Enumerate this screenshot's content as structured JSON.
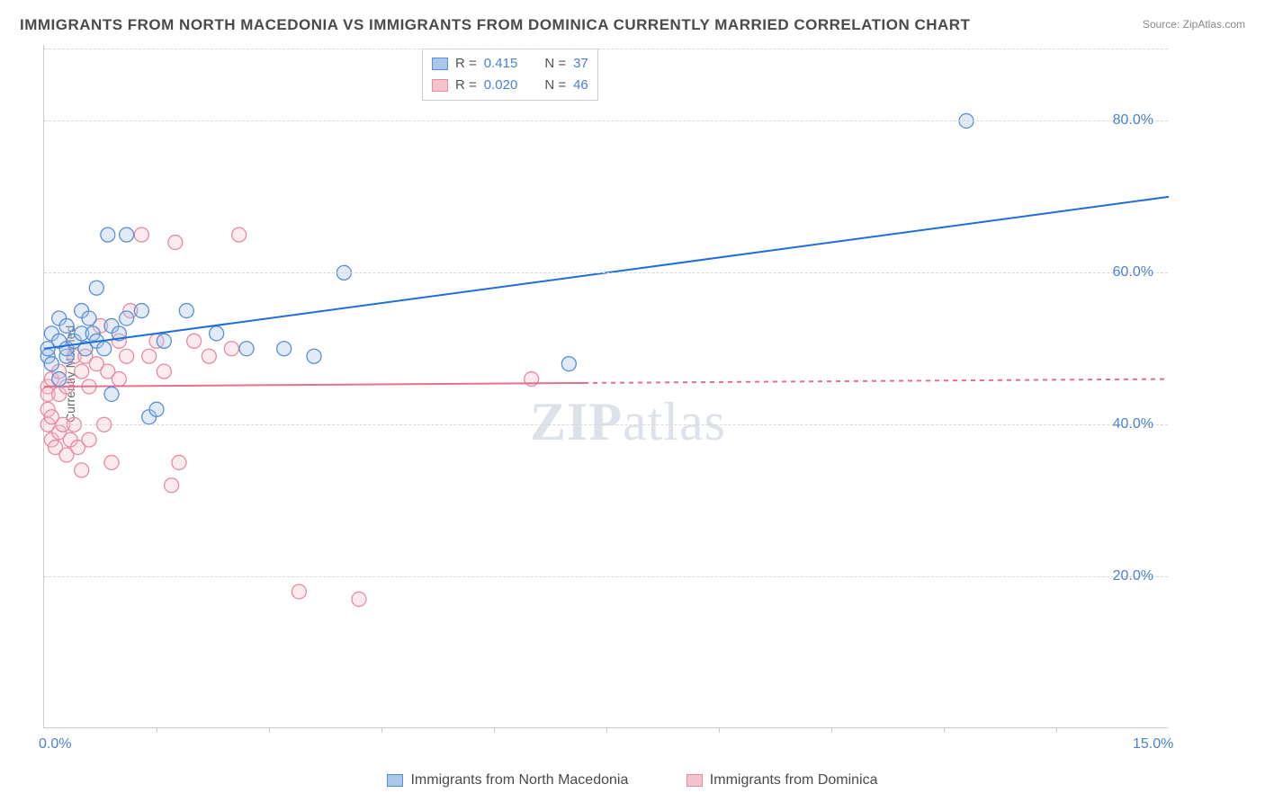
{
  "title": "IMMIGRANTS FROM NORTH MACEDONIA VS IMMIGRANTS FROM DOMINICA CURRENTLY MARRIED CORRELATION CHART",
  "source": "Source: ZipAtlas.com",
  "watermark": "ZIPatlas",
  "ylabel": "Currently Married",
  "chart": {
    "type": "scatter",
    "xlim": [
      0,
      15
    ],
    "ylim": [
      0,
      90
    ],
    "x_ticks": [
      {
        "v": 0,
        "label": "0.0%"
      },
      {
        "v": 15,
        "label": "15.0%"
      }
    ],
    "x_minor_ticks": [
      1.5,
      3,
      4.5,
      6,
      7.5,
      9,
      10.5,
      12,
      13.5
    ],
    "y_ticks": [
      {
        "v": 20,
        "label": "20.0%"
      },
      {
        "v": 40,
        "label": "40.0%"
      },
      {
        "v": 60,
        "label": "60.0%"
      },
      {
        "v": 80,
        "label": "80.0%"
      }
    ],
    "grid_color": "#d8d8d8",
    "background_color": "#ffffff",
    "marker_radius": 8,
    "marker_fill_opacity": 0.35,
    "marker_stroke_width": 1.3,
    "line_width": 2
  },
  "series": {
    "macedonia": {
      "label": "Immigrants from North Macedonia",
      "color_fill": "#a9c6ec",
      "color_stroke": "#5a8fd6",
      "line_color": "#1f6fd6",
      "legend_top": {
        "R": "0.415",
        "N": "37"
      },
      "trend": {
        "x1": 0,
        "y1": 50,
        "x2": 15,
        "y2": 70,
        "solid_until_x": 15
      },
      "points": [
        [
          0.05,
          49
        ],
        [
          0.05,
          50
        ],
        [
          0.1,
          48
        ],
        [
          0.1,
          52
        ],
        [
          0.2,
          46
        ],
        [
          0.2,
          51
        ],
        [
          0.2,
          54
        ],
        [
          0.3,
          49
        ],
        [
          0.3,
          53
        ],
        [
          0.3,
          50
        ],
        [
          0.4,
          51
        ],
        [
          0.5,
          52
        ],
        [
          0.5,
          55
        ],
        [
          0.55,
          50
        ],
        [
          0.6,
          54
        ],
        [
          0.65,
          52
        ],
        [
          0.7,
          51
        ],
        [
          0.7,
          58
        ],
        [
          0.8,
          50
        ],
        [
          0.85,
          65
        ],
        [
          0.9,
          53
        ],
        [
          0.9,
          44
        ],
        [
          1.0,
          52
        ],
        [
          1.1,
          54
        ],
        [
          1.1,
          65
        ],
        [
          1.3,
          55
        ],
        [
          1.4,
          41
        ],
        [
          1.5,
          42
        ],
        [
          1.6,
          51
        ],
        [
          1.9,
          55
        ],
        [
          2.3,
          52
        ],
        [
          2.7,
          50
        ],
        [
          3.2,
          50
        ],
        [
          3.6,
          49
        ],
        [
          4.0,
          60
        ],
        [
          7.0,
          48
        ],
        [
          12.3,
          80
        ]
      ]
    },
    "dominica": {
      "label": "Immigrants from Dominica",
      "color_fill": "#f4c3cd",
      "color_stroke": "#e98aa0",
      "line_color": "#e76f8e",
      "legend_top": {
        "R": "0.020",
        "N": "46"
      },
      "trend": {
        "x1": 0,
        "y1": 45,
        "x2": 15,
        "y2": 46,
        "solid_until_x": 7.2
      },
      "points": [
        [
          0.05,
          42
        ],
        [
          0.05,
          40
        ],
        [
          0.05,
          45
        ],
        [
          0.05,
          44
        ],
        [
          0.1,
          38
        ],
        [
          0.1,
          46
        ],
        [
          0.1,
          41
        ],
        [
          0.15,
          37
        ],
        [
          0.2,
          47
        ],
        [
          0.2,
          39
        ],
        [
          0.2,
          44
        ],
        [
          0.25,
          40
        ],
        [
          0.3,
          45
        ],
        [
          0.3,
          36
        ],
        [
          0.35,
          38
        ],
        [
          0.4,
          49
        ],
        [
          0.4,
          40
        ],
        [
          0.45,
          37
        ],
        [
          0.5,
          47
        ],
        [
          0.5,
          34
        ],
        [
          0.55,
          49
        ],
        [
          0.6,
          45
        ],
        [
          0.6,
          38
        ],
        [
          0.7,
          48
        ],
        [
          0.75,
          53
        ],
        [
          0.8,
          40
        ],
        [
          0.85,
          47
        ],
        [
          0.9,
          35
        ],
        [
          1.0,
          51
        ],
        [
          1.0,
          46
        ],
        [
          1.1,
          49
        ],
        [
          1.15,
          55
        ],
        [
          1.3,
          65
        ],
        [
          1.4,
          49
        ],
        [
          1.5,
          51
        ],
        [
          1.6,
          47
        ],
        [
          1.7,
          32
        ],
        [
          1.75,
          64
        ],
        [
          1.8,
          35
        ],
        [
          2.0,
          51
        ],
        [
          2.2,
          49
        ],
        [
          2.5,
          50
        ],
        [
          2.6,
          65
        ],
        [
          3.4,
          18
        ],
        [
          4.2,
          17
        ],
        [
          6.5,
          46
        ]
      ]
    }
  },
  "legend_top_labels": {
    "R": "R  =",
    "N": "N  ="
  }
}
